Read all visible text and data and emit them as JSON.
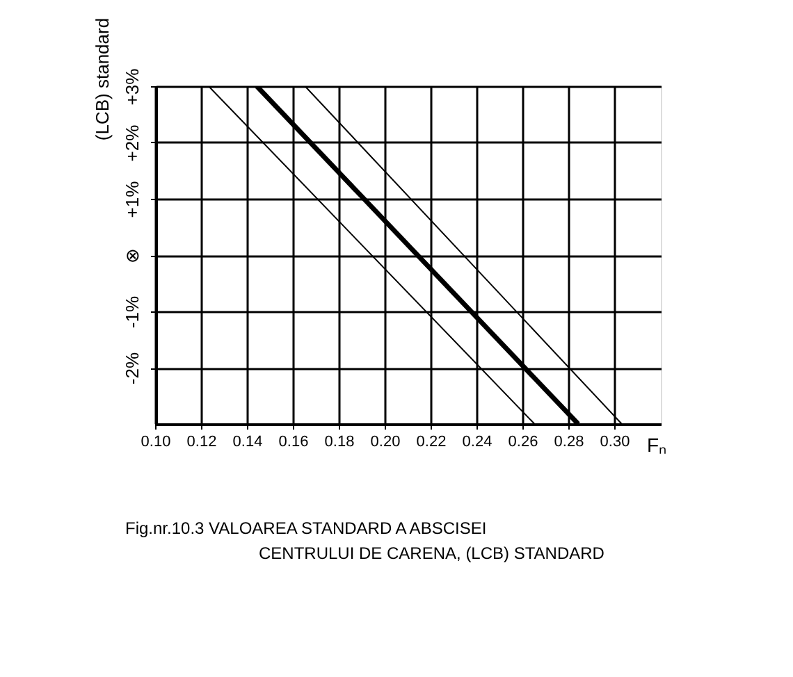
{
  "chart_data": {
    "type": "line",
    "xlabel": "Fₙ",
    "ylabel": "(LCB) standard",
    "annotations": [
      "Fig.nr.10.3   VALOAREA STANDARD A ABSCISEI",
      "CENTRULUI DE CARENA, (LCB) STANDARD"
    ],
    "series": [
      {
        "color": "#000000",
        "x": [
          0.123,
          0.265
        ],
        "values": [
          3,
          -3
        ]
      },
      {
        "color": "#000000",
        "x": [
          0.144,
          0.284
        ],
        "values": [
          3,
          -3
        ]
      },
      {
        "color": "#000000",
        "x": [
          0.165,
          0.303
        ],
        "values": [
          3,
          -3
        ]
      }
    ],
    "xlim": [
      0.1,
      0.32
    ],
    "xticks": [
      {
        "value": 0.1,
        "label": "0.10"
      },
      {
        "value": 0.12,
        "label": "0.12"
      },
      {
        "value": 0.14,
        "label": "0.14"
      },
      {
        "value": 0.16,
        "label": "0.16"
      },
      {
        "value": 0.18,
        "label": "0.18"
      },
      {
        "value": 0.2,
        "label": "0.20"
      },
      {
        "value": 0.22,
        "label": "0.22"
      },
      {
        "value": 0.24,
        "label": "0.24"
      },
      {
        "value": 0.26,
        "label": "0.26"
      },
      {
        "value": 0.28,
        "label": "0.28"
      },
      {
        "value": 0.3,
        "label": "0.30"
      }
    ],
    "ylim": [
      -3,
      3
    ],
    "yticks": [
      {
        "value": -2,
        "label": "-2%"
      },
      {
        "value": -1,
        "label": "-1%"
      },
      {
        "value": 0,
        "label": "⊗"
      },
      {
        "value": 1,
        "label": "+1%"
      },
      {
        "value": 2,
        "label": "+2%"
      },
      {
        "value": 3,
        "label": "+3%"
      }
    ],
    "grid": true,
    "marker": "none",
    "line_style": "solid"
  }
}
